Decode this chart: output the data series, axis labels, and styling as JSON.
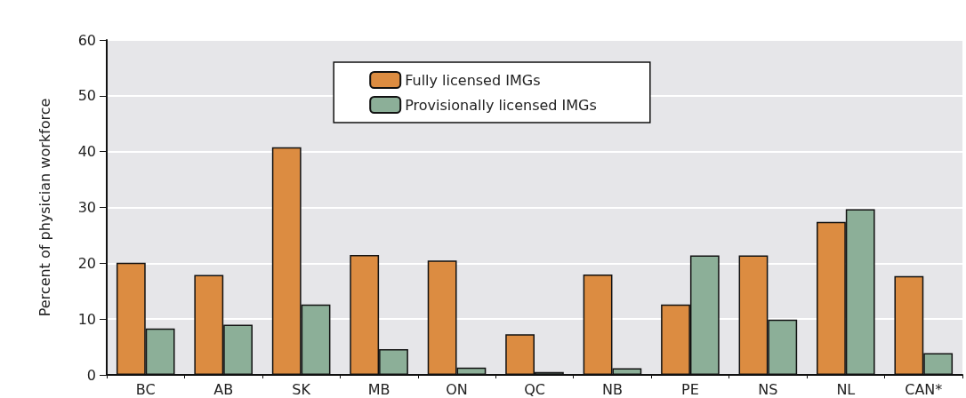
{
  "chart_data": {
    "type": "bar",
    "ylabel": "Percent of physician workforce",
    "categories": [
      "BC",
      "AB",
      "SK",
      "MB",
      "ON",
      "QC",
      "NB",
      "PE",
      "NS",
      "NL",
      "CAN*"
    ],
    "series": [
      {
        "name": "Fully licensed IMGs",
        "color": "#dc8c41",
        "values": [
          20.1,
          17.9,
          40.8,
          21.5,
          20.5,
          7.3,
          18.0,
          12.6,
          21.4,
          27.4,
          17.7
        ]
      },
      {
        "name": "Provisionally licensed IMGs",
        "color": "#8caf98",
        "values": [
          8.3,
          9.0,
          12.6,
          4.6,
          1.3,
          0.5,
          1.2,
          21.4,
          9.9,
          29.7,
          3.9
        ]
      }
    ],
    "ylim": [
      0,
      60
    ],
    "yticks": [
      0,
      10,
      20,
      30,
      40,
      50,
      60
    ],
    "grid": "y",
    "legend": "top"
  }
}
